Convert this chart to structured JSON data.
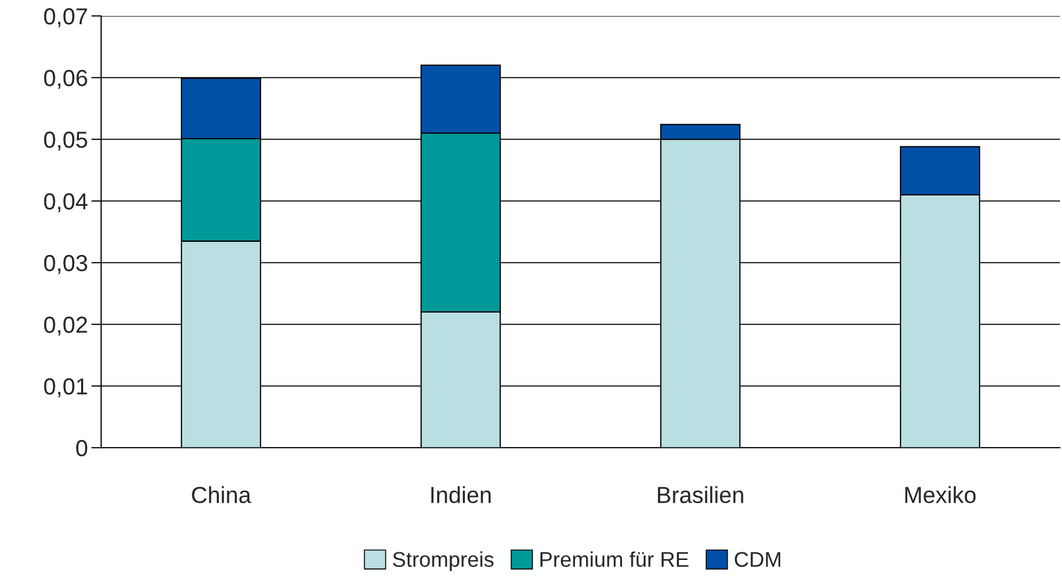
{
  "chart_data": {
    "type": "bar",
    "stacked": true,
    "categories": [
      "China",
      "Indien",
      "Brasilien",
      "Mexiko"
    ],
    "series": [
      {
        "name": "Strompreis",
        "color": "#b9dfe2",
        "values": [
          0.0335,
          0.022,
          0.05,
          0.041
        ]
      },
      {
        "name": "Premium für RE",
        "color": "#009999",
        "values": [
          0.0166,
          0.029,
          null,
          null
        ]
      },
      {
        "name": "CDM",
        "color": "#0050a8",
        "values": [
          0.0098,
          0.011,
          0.0024,
          0.0078
        ]
      }
    ],
    "ylim": [
      0,
      0.07
    ],
    "yticks": [
      {
        "value": 0,
        "label": "0"
      },
      {
        "value": 0.01,
        "label": "0,01"
      },
      {
        "value": 0.02,
        "label": "0,02"
      },
      {
        "value": 0.03,
        "label": "0,03"
      },
      {
        "value": 0.04,
        "label": "0,04"
      },
      {
        "value": 0.05,
        "label": "0,05"
      },
      {
        "value": 0.06,
        "label": "0,06"
      },
      {
        "value": 0.07,
        "label": "0,07"
      }
    ],
    "grid": "y",
    "legend": "bottom"
  }
}
